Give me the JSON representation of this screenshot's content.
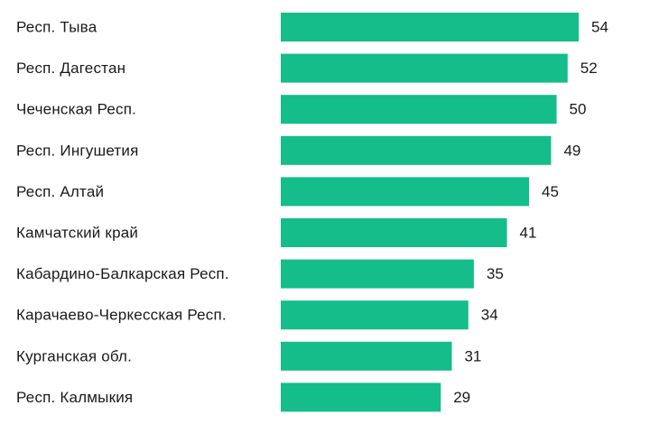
{
  "chart_data": {
    "type": "bar",
    "orientation": "horizontal",
    "categories": [
      "Респ. Тыва",
      "Респ. Дагестан",
      "Чеченская Респ.",
      "Респ. Ингушетия",
      "Респ. Алтай",
      "Камчатский край",
      "Кабардино-Балкарская Респ.",
      "Карачаево-Черкесская Респ.",
      "Курганская обл.",
      "Респ. Калмыкия"
    ],
    "values": [
      54,
      52,
      50,
      49,
      45,
      41,
      35,
      34,
      31,
      29
    ],
    "data_labels": [
      "54",
      "52",
      "50",
      "49",
      "45",
      "41",
      "35",
      "34",
      "31",
      "29"
    ],
    "xlim": [
      0,
      54
    ],
    "bar_color": "#14bd8a",
    "grid": false,
    "legend": "none"
  }
}
